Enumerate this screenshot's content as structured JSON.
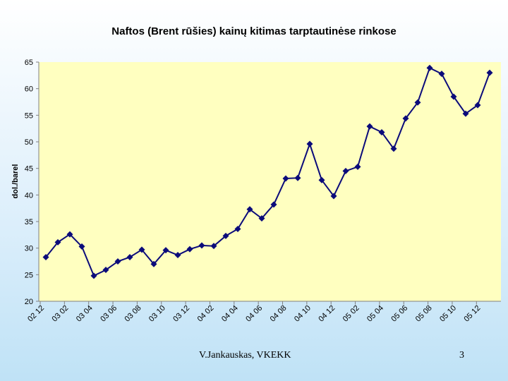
{
  "chart_data": {
    "type": "line",
    "title": "Naftos (Brent rūšies) kainų kitimas tarptautinėse rinkose",
    "xlabel": "",
    "ylabel": "dol./barel",
    "ylim": [
      20,
      65
    ],
    "yticks": [
      20,
      25,
      30,
      35,
      40,
      45,
      50,
      55,
      60,
      65
    ],
    "xticks": [
      "02 12",
      "03 02",
      "03 04",
      "03 06",
      "03 08",
      "03 10",
      "03 12",
      "04 02",
      "04 04",
      "04 06",
      "04 08",
      "04 10",
      "04 12",
      "05 02",
      "05 04",
      "05 06",
      "05 08",
      "05 10",
      "05 12"
    ],
    "grid": false,
    "legend": "none",
    "plot_bg": "#ffffc0",
    "line_color": "#0b0b7a",
    "series": [
      {
        "values": [
          28.3,
          31.1,
          32.6,
          30.3,
          24.8,
          25.9,
          27.5,
          28.3,
          29.7,
          27.0,
          29.6,
          28.7,
          29.8,
          30.5,
          30.4,
          32.3,
          33.6,
          37.3,
          35.6,
          38.2,
          43.1,
          43.2,
          49.6,
          42.8,
          39.8,
          44.5,
          45.3,
          52.9,
          51.8,
          48.7,
          54.4,
          57.4,
          63.9,
          62.8,
          58.5,
          55.3,
          56.9,
          63.0
        ]
      }
    ]
  },
  "footer": {
    "author": "V.Jankauskas, VKEKK",
    "page": "3"
  }
}
